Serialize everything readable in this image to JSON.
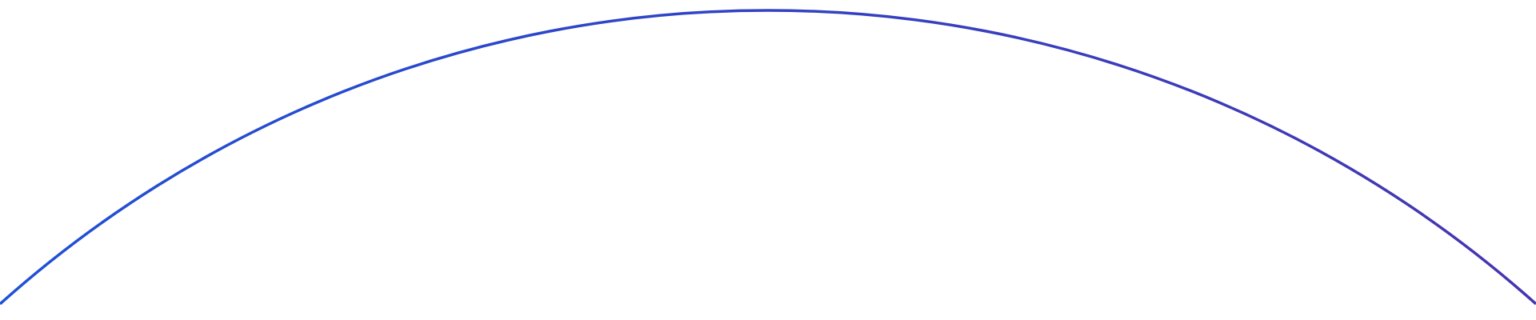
{
  "decoration": {
    "shape": "arc",
    "gradient_start_color": "#1f50d6",
    "gradient_end_color": "#4535b0",
    "background_color": "#ffffff"
  }
}
